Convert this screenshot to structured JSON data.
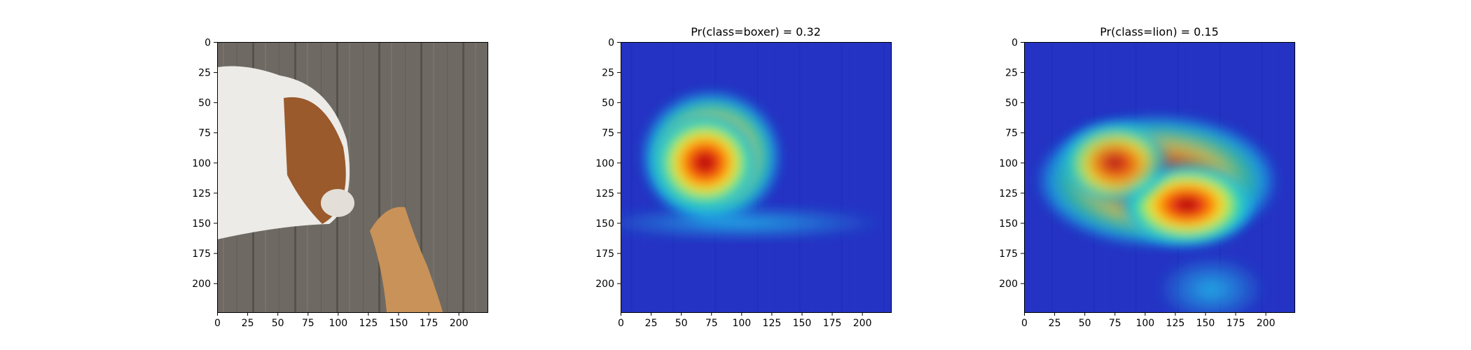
{
  "chart_data": [
    {
      "type": "heatmap",
      "title": "",
      "image": "original-photo",
      "xlim": [
        0,
        224
      ],
      "ylim": [
        224,
        0
      ],
      "x_ticks": [
        0,
        25,
        50,
        75,
        100,
        125,
        150,
        175,
        200
      ],
      "y_ticks": [
        0,
        25,
        50,
        75,
        100,
        125,
        150,
        175,
        200
      ],
      "hotspots": []
    },
    {
      "type": "heatmap",
      "title": "Pr(class=boxer) =  0.32",
      "image": "saliency-overlay",
      "colormap": "jet",
      "xlim": [
        0,
        224
      ],
      "ylim": [
        224,
        0
      ],
      "x_ticks": [
        0,
        25,
        50,
        75,
        100,
        125,
        150,
        175,
        200
      ],
      "y_ticks": [
        0,
        25,
        50,
        75,
        100,
        125,
        150,
        175,
        200
      ],
      "hotspots": [
        {
          "x": 75,
          "y": 95,
          "rx": 58,
          "ry": 55,
          "intensity": 0.72
        },
        {
          "x": 70,
          "y": 100,
          "rx": 45,
          "ry": 42,
          "intensity": 1.0
        },
        {
          "x": 100,
          "y": 150,
          "rx": 120,
          "ry": 14,
          "intensity": 0.35
        }
      ]
    },
    {
      "type": "heatmap",
      "title": "Pr(class=lion) =  0.15",
      "image": "saliency-overlay",
      "colormap": "jet",
      "xlim": [
        0,
        224
      ],
      "ylim": [
        224,
        0
      ],
      "x_ticks": [
        0,
        25,
        50,
        75,
        100,
        125,
        150,
        175,
        200
      ],
      "y_ticks": [
        0,
        25,
        50,
        75,
        100,
        125,
        150,
        175,
        200
      ],
      "hotspots": [
        {
          "x": 110,
          "y": 115,
          "rx": 100,
          "ry": 55,
          "intensity": 0.6
        },
        {
          "x": 135,
          "y": 135,
          "rx": 55,
          "ry": 35,
          "intensity": 1.0
        },
        {
          "x": 75,
          "y": 100,
          "rx": 45,
          "ry": 35,
          "intensity": 0.65
        },
        {
          "x": 155,
          "y": 205,
          "rx": 45,
          "ry": 28,
          "intensity": 0.35
        }
      ]
    }
  ]
}
